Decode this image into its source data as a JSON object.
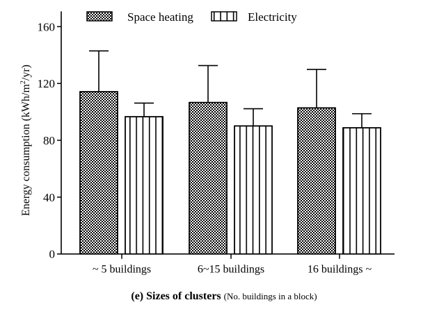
{
  "chart_data": {
    "type": "bar",
    "title": "(e) Sizes of clusters",
    "title_note": "(No. buildings in a block)",
    "xlabel": "",
    "ylabel": "Energy consumption (kWh/m",
    "ylabel_sup": "2",
    "ylabel_end": "/yr)",
    "ylim": [
      0,
      160
    ],
    "yticks": [
      "0",
      "40",
      "80",
      "120",
      "160"
    ],
    "categories": [
      "~ 5 buildings",
      "6~15 buildings",
      "16 buildings ~"
    ],
    "legend_position": "top",
    "series": [
      {
        "name": "Space heating",
        "pattern": "checker",
        "values": [
          114.2,
          106.6,
          102.8
        ],
        "error_upper": [
          142.9,
          132.6,
          129.9
        ]
      },
      {
        "name": "Electricity",
        "pattern": "vertical-lines",
        "values": [
          96.6,
          90.1,
          88.8
        ],
        "error_upper": [
          106.2,
          102.2,
          98.7
        ]
      }
    ]
  }
}
